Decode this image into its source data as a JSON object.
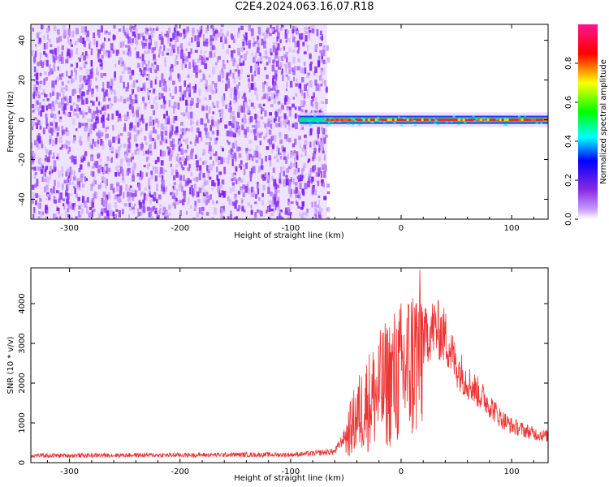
{
  "title": "C2E4.2024.063.16.07.R18",
  "chart_data": [
    {
      "type": "heatmap",
      "xlabel": "Height of straight line (km)",
      "ylabel": "Frequency (Hz)",
      "xlim": [
        -335,
        133
      ],
      "ylim": [
        -50,
        48
      ],
      "xticks": [
        -300,
        -200,
        -100,
        0,
        100
      ],
      "yticks": [
        -40,
        -20,
        0,
        20,
        40
      ],
      "noise_region_x": [
        -335,
        -67
      ],
      "signal_region_x": [
        -92,
        133
      ],
      "signal_frequency_hz": 0,
      "colorbar": {
        "label": "Normalized spectral amplitude",
        "range": [
          0,
          1
        ],
        "ticks": [
          0.0,
          0.2,
          0.4,
          0.6,
          0.8
        ],
        "colors": [
          "#ffffff",
          "#8a2be2",
          "#0000ff",
          "#00ffff",
          "#00ff00",
          "#ffff00",
          "#ff0000",
          "#ff1493"
        ]
      }
    },
    {
      "type": "line",
      "xlabel": "Height of straight line (km)",
      "ylabel": "SNR (10 * v/v)",
      "xlim": [
        -335,
        133
      ],
      "ylim": [
        0,
        4900
      ],
      "xticks": [
        -300,
        -200,
        -100,
        0,
        100
      ],
      "yticks": [
        0,
        1000,
        2000,
        3000,
        4000
      ],
      "color": "#ee3333",
      "envelope": {
        "x": [
          -335,
          -300,
          -250,
          -200,
          -150,
          -100,
          -80,
          -60,
          -50,
          -40,
          -30,
          -20,
          -10,
          0,
          10,
          20,
          30,
          40,
          50,
          60,
          70,
          80,
          90,
          100,
          110,
          120,
          133
        ],
        "y": [
          180,
          180,
          190,
          190,
          200,
          200,
          230,
          280,
          700,
          1300,
          1700,
          2000,
          2300,
          2500,
          2800,
          3200,
          3500,
          3250,
          2500,
          2100,
          1800,
          1500,
          1150,
          950,
          850,
          750,
          680
        ]
      }
    }
  ]
}
